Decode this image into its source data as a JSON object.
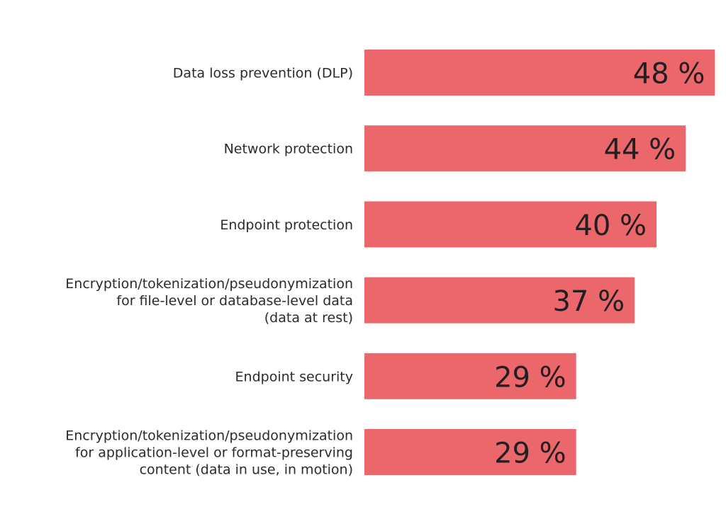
{
  "chart_data": {
    "type": "bar",
    "orientation": "horizontal",
    "title": "",
    "xlabel": "",
    "ylabel": "",
    "grid": false,
    "legend": "none",
    "bar_color": "#ec676b",
    "value_suffix": " %",
    "xlim": [
      0,
      48
    ],
    "categories": [
      [
        "Data loss prevention (DLP)"
      ],
      [
        "Network protection"
      ],
      [
        "Endpoint protection"
      ],
      [
        "Encryption/tokenization/pseudonymization",
        "for file-level or database-level data",
        "(data at rest)"
      ],
      [
        "Endpoint security"
      ],
      [
        "Encryption/tokenization/pseudonymization",
        "for application-level or format-preserving",
        "content (data in use, in motion)"
      ]
    ],
    "values": [
      48,
      44,
      40,
      37,
      29,
      29
    ],
    "data_labels": [
      "48 %",
      "44 %",
      "40 %",
      "37 %",
      "29 %",
      "29 %"
    ]
  }
}
